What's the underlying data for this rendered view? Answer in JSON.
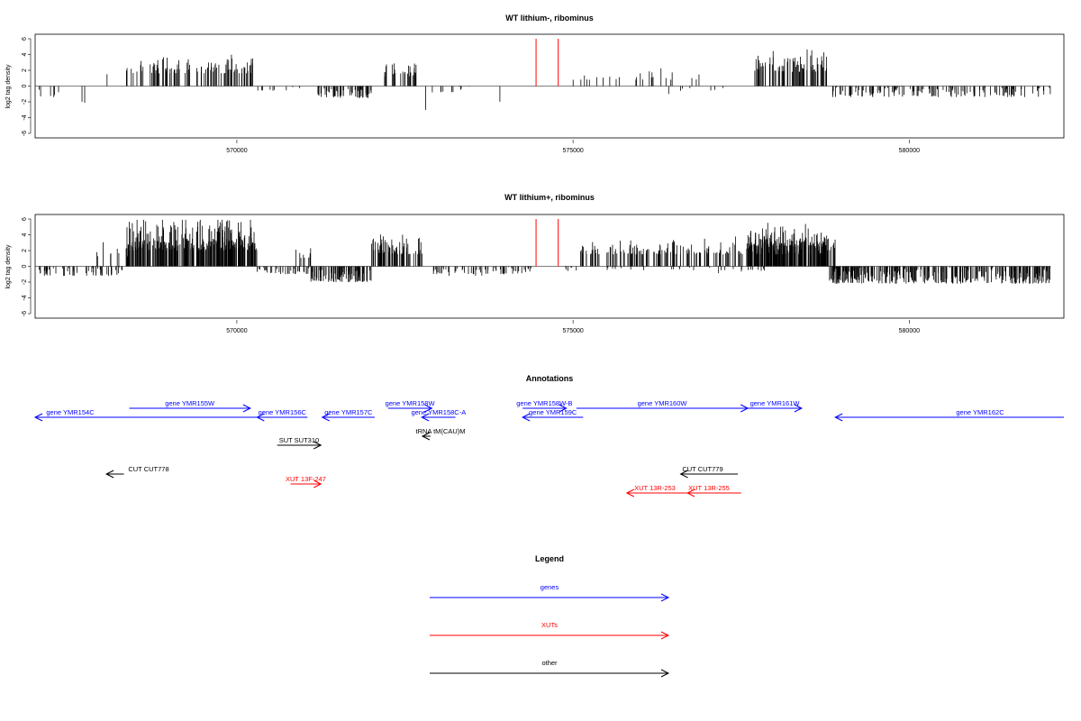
{
  "chart_data": [
    {
      "type": "bar",
      "title": "WT lithium-, ribominus",
      "xlabel": "",
      "ylabel": "log2 tag density",
      "xlim": [
        567000,
        582300
      ],
      "ylim": [
        -6,
        6
      ],
      "xticks": [
        570000,
        575000,
        580000
      ],
      "xtick_labels": [
        "570000",
        "575000",
        "580000"
      ],
      "yticks": [
        -6,
        -4,
        -2,
        0,
        2,
        4,
        6
      ],
      "ytick_labels": [
        "-6",
        "-4",
        "-2",
        "0",
        "2",
        "4",
        "6"
      ],
      "grid": false,
      "markers": [
        574450,
        574780
      ],
      "marker_color": "#ff0000",
      "bar_color": "#000000",
      "segments": [
        {
          "x0": 567000,
          "x1": 567350,
          "base": -1.6,
          "amp": 1.8,
          "n": 6,
          "sign": -1
        },
        {
          "x0": 567650,
          "x1": 567750,
          "base": -2.2,
          "amp": 0.8,
          "n": 2,
          "sign": -1
        },
        {
          "x0": 568050,
          "x1": 568120,
          "base": 1.4,
          "amp": 0.3,
          "n": 1,
          "sign": 1
        },
        {
          "x0": 568350,
          "x1": 570250,
          "base": 1.6,
          "amp": 3.0,
          "n": 110,
          "sign": 1
        },
        {
          "x0": 570300,
          "x1": 571200,
          "base": -0.6,
          "amp": 1.2,
          "n": 10,
          "sign": -1
        },
        {
          "x0": 571200,
          "x1": 572000,
          "base": -1.5,
          "amp": 2.8,
          "n": 70,
          "sign": -1
        },
        {
          "x0": 572150,
          "x1": 572700,
          "base": 1.2,
          "amp": 2.5,
          "n": 28,
          "sign": 1
        },
        {
          "x0": 572800,
          "x1": 572830,
          "base": -3.5,
          "amp": 1.6,
          "n": 1,
          "sign": -1
        },
        {
          "x0": 572900,
          "x1": 573500,
          "base": -0.8,
          "amp": 1.0,
          "n": 10,
          "sign": -1
        },
        {
          "x0": 573900,
          "x1": 573930,
          "base": -2.0,
          "amp": 0.8,
          "n": 1,
          "sign": -1
        },
        {
          "x0": 575000,
          "x1": 577000,
          "base": 0.8,
          "amp": 2.2,
          "n": 25,
          "sign": 1
        },
        {
          "x0": 576300,
          "x1": 577400,
          "base": -0.6,
          "amp": 2.2,
          "n": 8,
          "sign": -1
        },
        {
          "x0": 577700,
          "x1": 578800,
          "base": 1.8,
          "amp": 3.4,
          "n": 80,
          "sign": 1
        },
        {
          "x0": 578850,
          "x1": 582100,
          "base": -1.4,
          "amp": 2.8,
          "n": 150,
          "sign": -1
        }
      ]
    },
    {
      "type": "bar",
      "title": "WT lithium+, ribominus",
      "xlabel": "",
      "ylabel": "log2 tag density",
      "xlim": [
        567000,
        582300
      ],
      "ylim": [
        -6,
        6
      ],
      "xticks": [
        570000,
        575000,
        580000
      ],
      "xtick_labels": [
        "570000",
        "575000",
        "580000"
      ],
      "yticks": [
        -6,
        -4,
        -2,
        0,
        2,
        4,
        6
      ],
      "ytick_labels": [
        "-6",
        "-4",
        "-2",
        "0",
        "2",
        "4",
        "6"
      ],
      "grid": false,
      "markers": [
        574450,
        574780
      ],
      "marker_color": "#ff0000",
      "bar_color": "#000000",
      "segments": [
        {
          "x0": 567000,
          "x1": 568300,
          "base": -1.2,
          "amp": 2.4,
          "n": 60,
          "sign": -1
        },
        {
          "x0": 567850,
          "x1": 568400,
          "base": 1.2,
          "amp": 2.3,
          "n": 12,
          "sign": 1
        },
        {
          "x0": 568350,
          "x1": 570300,
          "base": 2.0,
          "amp": 4.8,
          "n": 300,
          "sign": 1
        },
        {
          "x0": 570300,
          "x1": 571100,
          "base": -1.0,
          "amp": 2.0,
          "n": 40,
          "sign": -1
        },
        {
          "x0": 570800,
          "x1": 571100,
          "base": 1.0,
          "amp": 2.0,
          "n": 10,
          "sign": 1
        },
        {
          "x0": 571100,
          "x1": 572000,
          "base": -2.0,
          "amp": 3.5,
          "n": 110,
          "sign": -1
        },
        {
          "x0": 572000,
          "x1": 572800,
          "base": 1.5,
          "amp": 3.0,
          "n": 70,
          "sign": 1
        },
        {
          "x0": 572800,
          "x1": 574400,
          "base": -1.0,
          "amp": 2.5,
          "n": 70,
          "sign": -1
        },
        {
          "x0": 574850,
          "x1": 575150,
          "base": -0.6,
          "amp": 1.5,
          "n": 6,
          "sign": -1
        },
        {
          "x0": 575100,
          "x1": 578900,
          "base": 1.5,
          "amp": 2.5,
          "n": 220,
          "sign": 1
        },
        {
          "x0": 577600,
          "x1": 578800,
          "base": 2.5,
          "amp": 3.5,
          "n": 140,
          "sign": 1
        },
        {
          "x0": 575500,
          "x1": 578000,
          "base": -0.5,
          "amp": 2.0,
          "n": 30,
          "sign": -1
        },
        {
          "x0": 578800,
          "x1": 582100,
          "base": -2.2,
          "amp": 3.6,
          "n": 340,
          "sign": -1
        }
      ]
    }
  ],
  "annotations": {
    "title": "Annotations",
    "features": [
      {
        "label": "gene YMR154C",
        "x0": 567000,
        "x1": 570400,
        "row": 1,
        "kind": "gene",
        "dir": -1
      },
      {
        "label": "gene YMR155W",
        "x0": 568400,
        "x1": 570200,
        "row": 0,
        "kind": "gene",
        "dir": 1
      },
      {
        "label": "gene YMR156C",
        "x0": 570300,
        "x1": 571050,
        "row": 1,
        "kind": "gene",
        "dir": -1
      },
      {
        "label": "gene YMR157C",
        "x0": 571270,
        "x1": 572050,
        "row": 1,
        "kind": "gene",
        "dir": -1
      },
      {
        "label": "gene YMR158W",
        "x0": 572250,
        "x1": 572900,
        "row": 0,
        "kind": "gene",
        "dir": 1
      },
      {
        "label": "gene YMR158C-A",
        "x0": 572750,
        "x1": 573250,
        "row": 1,
        "kind": "gene",
        "dir": -1
      },
      {
        "label": "gene YMR158W-B",
        "x0": 574250,
        "x1": 574900,
        "row": 0,
        "kind": "gene",
        "dir": 1
      },
      {
        "label": "gene YMR159C",
        "x0": 574250,
        "x1": 575150,
        "row": 1,
        "kind": "gene",
        "dir": -1
      },
      {
        "label": "gene YMR160W",
        "x0": 575050,
        "x1": 577600,
        "row": 0,
        "kind": "gene",
        "dir": 1
      },
      {
        "label": "gene YMR161W",
        "x0": 577600,
        "x1": 578400,
        "row": 0,
        "kind": "gene",
        "dir": 1
      },
      {
        "label": "gene YMR162C",
        "x0": 578900,
        "x1": 584300,
        "row": 1,
        "kind": "gene",
        "dir": -1
      },
      {
        "label": "tRNA tM(CAU)M",
        "x0": 572760,
        "x1": 572880,
        "row": 2,
        "kind": "other",
        "dir": -1
      },
      {
        "label": "SUT SUT310",
        "x0": 570600,
        "x1": 571250,
        "row": 3,
        "kind": "other",
        "dir": 1
      },
      {
        "label": "CUT CUT778",
        "x0": 568060,
        "x1": 568320,
        "row": 4,
        "kind": "other",
        "dir": -1
      },
      {
        "label": "CUT CUT779",
        "x0": 576600,
        "x1": 577450,
        "row": 4,
        "kind": "other",
        "dir": -1
      },
      {
        "label": "XUT 13F-247",
        "x0": 570800,
        "x1": 571250,
        "row": 5,
        "kind": "xut",
        "dir": 1
      },
      {
        "label": "XUT 13R-253",
        "x0": 575800,
        "x1": 576700,
        "row": 6,
        "kind": "xut",
        "dir": -1
      },
      {
        "label": "XUT 13R-255",
        "x0": 576700,
        "x1": 577500,
        "row": 6,
        "kind": "xut",
        "dir": -1
      }
    ]
  },
  "legend": {
    "title": "Legend",
    "items": [
      {
        "label": "genes",
        "color": "#0000ff"
      },
      {
        "label": "XUTs",
        "color": "#ff0000"
      },
      {
        "label": "other",
        "color": "#000000"
      }
    ]
  },
  "colors": {
    "gene": "#0000ff",
    "xut": "#ff0000",
    "other": "#000000"
  }
}
